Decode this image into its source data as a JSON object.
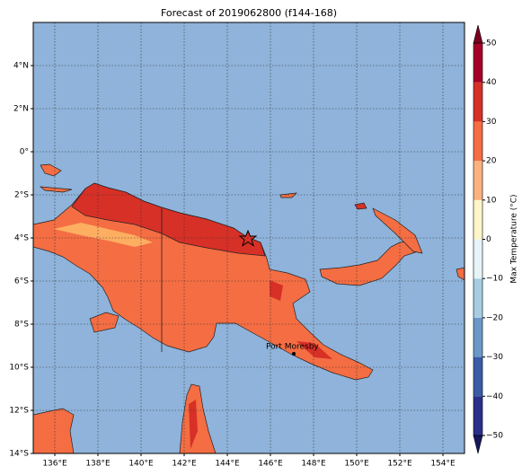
{
  "chart_data": {
    "type": "map",
    "title": "Forecast of 2019062800 (f144-168)",
    "xlim": [
      135,
      155
    ],
    "ylim": [
      -14,
      6
    ],
    "xticks": [
      {
        "value": 136,
        "label": "136°E"
      },
      {
        "value": 138,
        "label": "138°E"
      },
      {
        "value": 140,
        "label": "140°E"
      },
      {
        "value": 142,
        "label": "142°E"
      },
      {
        "value": 144,
        "label": "144°E"
      },
      {
        "value": 146,
        "label": "146°E"
      },
      {
        "value": 148,
        "label": "148°E"
      },
      {
        "value": 150,
        "label": "150°E"
      },
      {
        "value": 152,
        "label": "152°E"
      },
      {
        "value": 154,
        "label": "154°E"
      }
    ],
    "yticks": [
      {
        "value": 4,
        "label": "4°N"
      },
      {
        "value": 2,
        "label": "2°N"
      },
      {
        "value": 0,
        "label": "0°"
      },
      {
        "value": -2,
        "label": "2°S"
      },
      {
        "value": -4,
        "label": "4°S"
      },
      {
        "value": -6,
        "label": "6°S"
      },
      {
        "value": -8,
        "label": "8°S"
      },
      {
        "value": -10,
        "label": "10°S"
      },
      {
        "value": -12,
        "label": "12°S"
      },
      {
        "value": -14,
        "label": "14°S"
      }
    ],
    "grid": true,
    "annotations": [
      {
        "label": "Port Moresby"
      }
    ],
    "colorbar": {
      "label": "Max Temperature (°C)",
      "ticks": [
        {
          "value": -50,
          "label": "−50"
        },
        {
          "value": -40,
          "label": "−40"
        },
        {
          "value": -30,
          "label": "−30"
        },
        {
          "value": -20,
          "label": "−20"
        },
        {
          "value": -10,
          "label": "−10"
        },
        0,
        10,
        20,
        30,
        40,
        50
      ],
      "colors": [
        "#2b2f8c",
        "#3a5ba6",
        "#6a98c8",
        "#a6cde3",
        "#e6f4f8",
        "#fff6c8",
        "#fbb27e",
        "#f46d43",
        "#d73027",
        "#a50026"
      ],
      "under_color": "#17175e",
      "over_color": "#7a0020"
    }
  }
}
